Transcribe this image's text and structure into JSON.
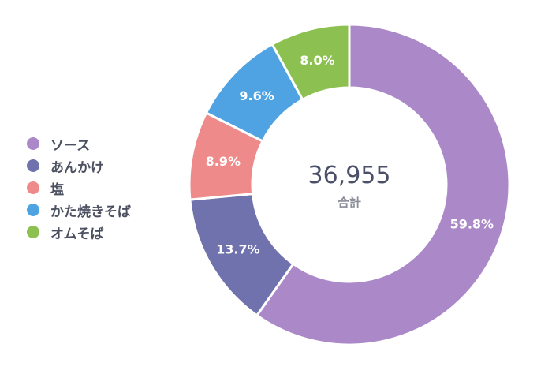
{
  "chart_data": {
    "type": "pie",
    "donut": true,
    "legend_position": "left",
    "slices": [
      {
        "name": "ソース",
        "value": 59.8,
        "label": "59.8%",
        "color": "#ab89c9"
      },
      {
        "name": "あんかけ",
        "value": 13.7,
        "label": "13.7%",
        "color": "#7072ad"
      },
      {
        "name": "塩",
        "value": 8.9,
        "label": "8.9%",
        "color": "#ee8a8a"
      },
      {
        "name": "かた焼きそば",
        "value": 9.6,
        "label": "9.6%",
        "color": "#4fa3e2"
      },
      {
        "name": "オムそば",
        "value": 8.0,
        "label": "8.0%",
        "color": "#8cc152"
      }
    ],
    "center": {
      "value": "36,955",
      "caption": "合計"
    }
  }
}
